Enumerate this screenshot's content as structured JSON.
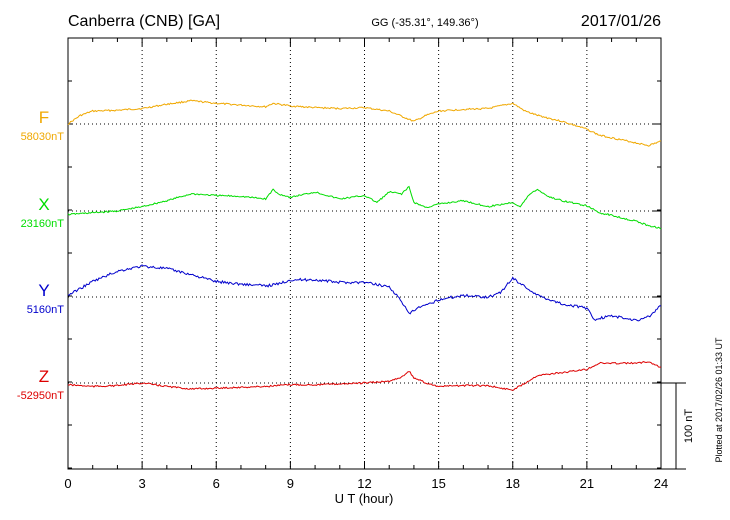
{
  "header": {
    "station": "Canberra (CNB)  [GA]",
    "coords": "GG (-35.31°, 149.36°)",
    "date": "2017/01/26"
  },
  "footer": {
    "plotted": "Plotted at 2017/02/26 01:33 UT"
  },
  "scale_bar": {
    "label": "100 nT",
    "value_nT": 100
  },
  "colors": {
    "F": "#f0a800",
    "X": "#00dd00",
    "Y": "#0000cc",
    "Z": "#dd0000",
    "grid": "#000000"
  },
  "chart_data": {
    "type": "line",
    "xlabel": "U T (hour)",
    "xlim": [
      0,
      24
    ],
    "x_ticks": [
      0,
      3,
      6,
      9,
      12,
      15,
      18,
      21,
      24
    ],
    "x_tick_labels": [
      "0",
      "3",
      "6",
      "9",
      "12",
      "15",
      "18",
      "21",
      "24"
    ],
    "y_unit": "nT",
    "y_range_nT": [
      -52990,
      58130
    ],
    "grid": true,
    "series": [
      {
        "name": "F",
        "baseline_label": "58030nT",
        "baseline": 58030,
        "x": [
          0,
          0.5,
          1,
          2,
          3,
          4,
          5,
          6,
          7,
          8,
          8.3,
          9,
          10,
          11,
          12,
          13,
          13.5,
          14,
          14.5,
          15,
          16,
          17,
          17.5,
          18,
          18.5,
          19,
          20,
          21,
          21.5,
          22,
          23,
          23.5,
          24
        ],
        "values": [
          58030,
          58040,
          58045,
          58046,
          58048,
          58053,
          58057,
          58054,
          58052,
          58050,
          58054,
          58051,
          58049,
          58048,
          58049,
          58045,
          58039,
          58033,
          58040,
          58045,
          58047,
          58048,
          58051,
          58054,
          58045,
          58040,
          58033,
          58024,
          58017,
          58014,
          58008,
          58005,
          58010
        ]
      },
      {
        "name": "X",
        "baseline_label": "23160nT",
        "baseline": 23160,
        "x": [
          0,
          1,
          2,
          3,
          4,
          5,
          6,
          7,
          8,
          8.3,
          8.5,
          9,
          10,
          11,
          12,
          12.5,
          13,
          13.5,
          13.8,
          14,
          14.5,
          15,
          16,
          17,
          18,
          18.3,
          18.7,
          19,
          19.5,
          20,
          21,
          21.5,
          22,
          23,
          23.5,
          24
        ],
        "values": [
          23156,
          23158,
          23160,
          23165,
          23172,
          23180,
          23178,
          23177,
          23174,
          23185,
          23180,
          23176,
          23182,
          23174,
          23178,
          23170,
          23182,
          23180,
          23188,
          23170,
          23164,
          23168,
          23172,
          23165,
          23170,
          23165,
          23180,
          23185,
          23176,
          23172,
          23166,
          23158,
          23155,
          23148,
          23143,
          23140
        ]
      },
      {
        "name": "Y",
        "baseline_label": "5160nT",
        "baseline": 5160,
        "x": [
          0,
          0.5,
          1,
          2,
          3,
          4,
          5,
          6,
          7,
          8,
          8.5,
          9,
          10,
          11,
          12,
          13,
          13.5,
          13.8,
          14.2,
          14.5,
          15,
          16,
          17,
          17.5,
          18,
          18.5,
          19,
          20,
          21,
          21.3,
          22,
          23,
          23.5,
          24
        ],
        "values": [
          5162,
          5170,
          5178,
          5190,
          5196,
          5193,
          5186,
          5178,
          5175,
          5173,
          5175,
          5180,
          5180,
          5177,
          5177,
          5172,
          5155,
          5140,
          5148,
          5150,
          5157,
          5162,
          5160,
          5165,
          5182,
          5172,
          5162,
          5152,
          5147,
          5134,
          5138,
          5133,
          5137,
          5150
        ]
      },
      {
        "name": "Z",
        "baseline_label": "-52950nT",
        "baseline": -52950,
        "x": [
          0,
          1,
          2,
          3,
          4,
          5,
          6,
          7,
          8,
          9,
          10,
          11,
          12,
          13,
          13.5,
          13.8,
          14,
          14.5,
          15,
          16,
          17,
          17.5,
          18,
          18.5,
          19,
          20,
          21,
          21.5,
          22,
          23,
          23.5,
          24
        ],
        "values": [
          -52952,
          -52954,
          -52953,
          -52950,
          -52954,
          -52957,
          -52956,
          -52955,
          -52954,
          -52952,
          -52952,
          -52951,
          -52950,
          -52948,
          -52943,
          -52936,
          -52944,
          -52950,
          -52954,
          -52953,
          -52953,
          -52956,
          -52958,
          -52950,
          -52941,
          -52938,
          -52934,
          -52927,
          -52927,
          -52927,
          -52925,
          -52932
        ]
      }
    ]
  }
}
